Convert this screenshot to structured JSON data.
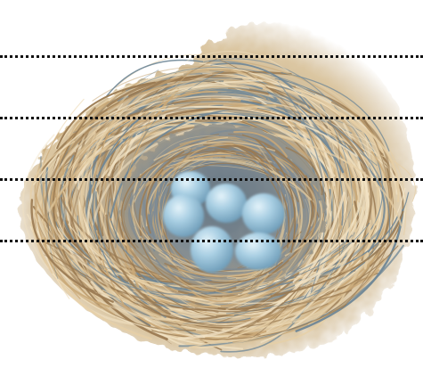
{
  "image": {
    "subject": "bird-nest",
    "colors": {
      "background": "#ffffff",
      "straw_light": "#e6cfa6",
      "straw_mid": "#c9a877",
      "straw_dark": "#9a7a52",
      "shadow_blue": "#6f8797",
      "cup_shadow": "#7c8a95",
      "egg_base": "#a9cfe3",
      "egg_highlight": "#e4f3fa",
      "egg_shadow": "#6f9db9",
      "dotted_line": "#111111"
    },
    "egg_count": 6,
    "dotted_line_count": 4
  }
}
